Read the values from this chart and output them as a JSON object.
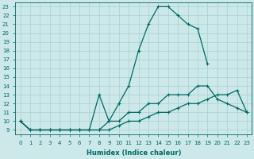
{
  "xlabel": "Humidex (Indice chaleur)",
  "bg_color": "#cce8e8",
  "grid_color": "#a8d0d0",
  "line_color": "#006868",
  "xlim": [
    -0.5,
    23.5
  ],
  "ylim": [
    8.5,
    23.5
  ],
  "xticks": [
    0,
    1,
    2,
    3,
    4,
    5,
    6,
    7,
    8,
    9,
    10,
    11,
    12,
    13,
    14,
    15,
    16,
    17,
    18,
    19,
    20,
    21,
    22,
    23
  ],
  "yticks": [
    9,
    10,
    11,
    12,
    13,
    14,
    15,
    16,
    17,
    18,
    19,
    20,
    21,
    22,
    23
  ],
  "curve_hump_x": [
    0,
    1,
    2,
    3,
    4,
    5,
    6,
    7,
    8,
    9,
    10,
    11,
    12,
    13,
    14,
    15,
    16,
    17,
    18,
    19
  ],
  "curve_hump_y": [
    10,
    9,
    9,
    9,
    9,
    9,
    9,
    9,
    9,
    10,
    12,
    14,
    18,
    21,
    23,
    23,
    22,
    21,
    20.5,
    16.5
  ],
  "curve_mid_x": [
    0,
    1,
    2,
    3,
    4,
    5,
    6,
    7,
    8,
    9,
    10,
    11,
    12,
    13,
    14,
    15,
    16,
    17,
    18,
    19,
    20,
    21,
    22,
    23
  ],
  "curve_mid_y": [
    10,
    9,
    9,
    9,
    9,
    9,
    9,
    9,
    13,
    10,
    10,
    11,
    11,
    12,
    12,
    13,
    13,
    13,
    14,
    14,
    12.5,
    12,
    11.5,
    11
  ],
  "curve_low_x": [
    0,
    1,
    2,
    3,
    4,
    5,
    6,
    7,
    8,
    9,
    10,
    11,
    12,
    13,
    14,
    15,
    16,
    17,
    18,
    19,
    20,
    21,
    22,
    23
  ],
  "curve_low_y": [
    10,
    9,
    9,
    9,
    9,
    9,
    9,
    9,
    9,
    9,
    9.5,
    10,
    10,
    10.5,
    11,
    11,
    11.5,
    12,
    12,
    12.5,
    13,
    13,
    13.5,
    11
  ]
}
